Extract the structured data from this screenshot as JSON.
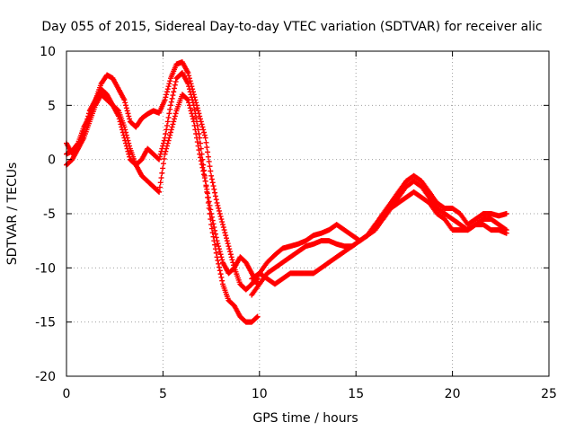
{
  "chart_data": {
    "type": "scatter",
    "title": "Day 055 of 2015, Sidereal Day-to-day VTEC variation (SDTVAR) for receiver alic",
    "xlabel": "GPS time / hours",
    "ylabel": "SDTVAR / TECUs",
    "xlim": [
      0,
      25
    ],
    "ylim": [
      -20,
      10
    ],
    "xticks": [
      "0",
      "5",
      "10",
      "15",
      "20",
      "25"
    ],
    "yticks": [
      "-20",
      "-15",
      "-10",
      "-5",
      "0",
      "5",
      "10"
    ],
    "grid": true,
    "legend": "none",
    "marker": "+",
    "series_color": "#ff0000",
    "series": [
      {
        "x": [
          0.0,
          0.3,
          0.6,
          0.9,
          1.2,
          1.5,
          1.8,
          2.1,
          2.4,
          2.7,
          3.0,
          3.3,
          3.6,
          3.9,
          4.2,
          4.5,
          4.8,
          5.1,
          5.4,
          5.7,
          6.0,
          6.3,
          6.6,
          6.9,
          7.2,
          7.5,
          7.8,
          8.1,
          8.4,
          8.7,
          9.0,
          9.3,
          9.6,
          9.9
        ],
        "y": [
          1.5,
          0.5,
          1.0,
          2.5,
          4.5,
          5.5,
          7.0,
          7.8,
          7.5,
          6.5,
          5.5,
          3.5,
          3.0,
          3.8,
          4.2,
          4.5,
          4.3,
          5.5,
          7.5,
          8.8,
          9.0,
          8.0,
          6.0,
          4.0,
          2.0,
          -1.5,
          -4.0,
          -6.0,
          -8.0,
          -10.0,
          -11.5,
          -12.0,
          -11.5,
          -11.0
        ]
      },
      {
        "x": [
          0.0,
          0.3,
          0.6,
          0.9,
          1.2,
          1.5,
          1.8,
          2.1,
          2.4,
          2.7,
          3.0,
          3.3,
          3.6,
          3.9,
          4.2,
          4.5,
          4.8,
          5.1,
          5.4,
          5.7,
          6.0,
          6.3,
          6.6,
          6.9,
          7.2,
          7.5,
          7.8,
          8.1,
          8.4,
          8.7,
          9.0,
          9.3,
          9.6,
          9.9
        ],
        "y": [
          0.5,
          0.8,
          1.5,
          3.0,
          4.0,
          5.5,
          6.5,
          6.0,
          5.0,
          4.0,
          2.0,
          0.0,
          -0.5,
          0.0,
          1.0,
          0.5,
          0.0,
          2.0,
          5.0,
          7.5,
          8.0,
          7.0,
          5.0,
          2.0,
          -2.0,
          -5.0,
          -7.5,
          -9.5,
          -10.5,
          -10.0,
          -9.0,
          -9.5,
          -10.5,
          -11.5
        ]
      },
      {
        "x": [
          0.0,
          0.3,
          0.6,
          0.9,
          1.2,
          1.5,
          1.8,
          2.1,
          2.4,
          2.7,
          3.0,
          3.3,
          3.6,
          3.9,
          4.2,
          4.5,
          4.8,
          5.1,
          5.4,
          5.7,
          6.0,
          6.3,
          6.6,
          6.9,
          7.2,
          7.5,
          7.8,
          8.1,
          8.4,
          8.7,
          9.0,
          9.3,
          9.6,
          9.9
        ],
        "y": [
          -0.5,
          0.0,
          1.0,
          2.0,
          3.5,
          5.0,
          6.0,
          5.5,
          5.0,
          4.5,
          3.0,
          1.0,
          -0.5,
          -1.5,
          -2.0,
          -2.5,
          -3.0,
          0.5,
          2.5,
          4.5,
          6.0,
          5.5,
          3.5,
          0.5,
          -2.0,
          -6.0,
          -9.0,
          -11.5,
          -13.0,
          -13.5,
          -14.5,
          -15.0,
          -15.0,
          -14.5
        ]
      },
      {
        "x": [
          9.6,
          10.0,
          10.4,
          10.8,
          11.2,
          11.6,
          12.0,
          12.4,
          12.8,
          13.2,
          13.6,
          14.0,
          14.4,
          14.8,
          15.2,
          15.6,
          16.0,
          16.4,
          16.8,
          17.2,
          17.6,
          18.0,
          18.4,
          18.8,
          19.2,
          19.6,
          20.0,
          20.4,
          20.8,
          21.2,
          21.6,
          22.0,
          22.4,
          22.8
        ],
        "y": [
          -11.5,
          -10.5,
          -9.5,
          -8.8,
          -8.2,
          -8.0,
          -7.8,
          -7.5,
          -7.0,
          -6.8,
          -6.5,
          -6.0,
          -6.5,
          -7.0,
          -7.5,
          -7.0,
          -6.0,
          -5.0,
          -4.0,
          -3.0,
          -2.0,
          -1.5,
          -2.0,
          -3.0,
          -4.0,
          -4.5,
          -4.5,
          -5.0,
          -6.0,
          -5.5,
          -5.0,
          -5.0,
          -5.2,
          -5.0
        ]
      },
      {
        "x": [
          9.6,
          10.0,
          10.4,
          10.8,
          11.2,
          11.6,
          12.0,
          12.4,
          12.8,
          13.2,
          13.6,
          14.0,
          14.4,
          14.8,
          15.2,
          15.6,
          16.0,
          16.4,
          16.8,
          17.2,
          17.6,
          18.0,
          18.4,
          18.8,
          19.2,
          19.6,
          20.0,
          20.4,
          20.8,
          21.2,
          21.6,
          22.0,
          22.4,
          22.8
        ],
        "y": [
          -12.5,
          -11.5,
          -10.5,
          -10.0,
          -9.5,
          -9.0,
          -8.5,
          -8.0,
          -7.8,
          -7.5,
          -7.5,
          -7.8,
          -8.0,
          -8.0,
          -7.5,
          -7.0,
          -6.5,
          -5.5,
          -4.5,
          -3.5,
          -2.5,
          -2.0,
          -2.5,
          -3.5,
          -4.5,
          -5.0,
          -5.5,
          -6.0,
          -6.5,
          -6.0,
          -5.5,
          -5.5,
          -6.0,
          -6.5
        ]
      },
      {
        "x": [
          9.6,
          10.0,
          10.4,
          10.8,
          11.2,
          11.6,
          12.0,
          12.4,
          12.8,
          13.2,
          13.6,
          14.0,
          14.4,
          14.8,
          15.2,
          15.6,
          16.0,
          16.4,
          16.8,
          17.2,
          17.6,
          18.0,
          18.4,
          18.8,
          19.2,
          19.6,
          20.0,
          20.4,
          20.8,
          21.2,
          21.6,
          22.0,
          22.4,
          22.8
        ],
        "y": [
          -11.0,
          -10.5,
          -11.0,
          -11.5,
          -11.0,
          -10.5,
          -10.5,
          -10.5,
          -10.5,
          -10.0,
          -9.5,
          -9.0,
          -8.5,
          -8.0,
          -7.5,
          -7.0,
          -6.0,
          -5.5,
          -4.5,
          -4.0,
          -3.5,
          -3.0,
          -3.5,
          -4.0,
          -5.0,
          -5.5,
          -6.5,
          -6.5,
          -6.5,
          -6.0,
          -6.0,
          -6.5,
          -6.5,
          -6.8
        ]
      }
    ]
  }
}
